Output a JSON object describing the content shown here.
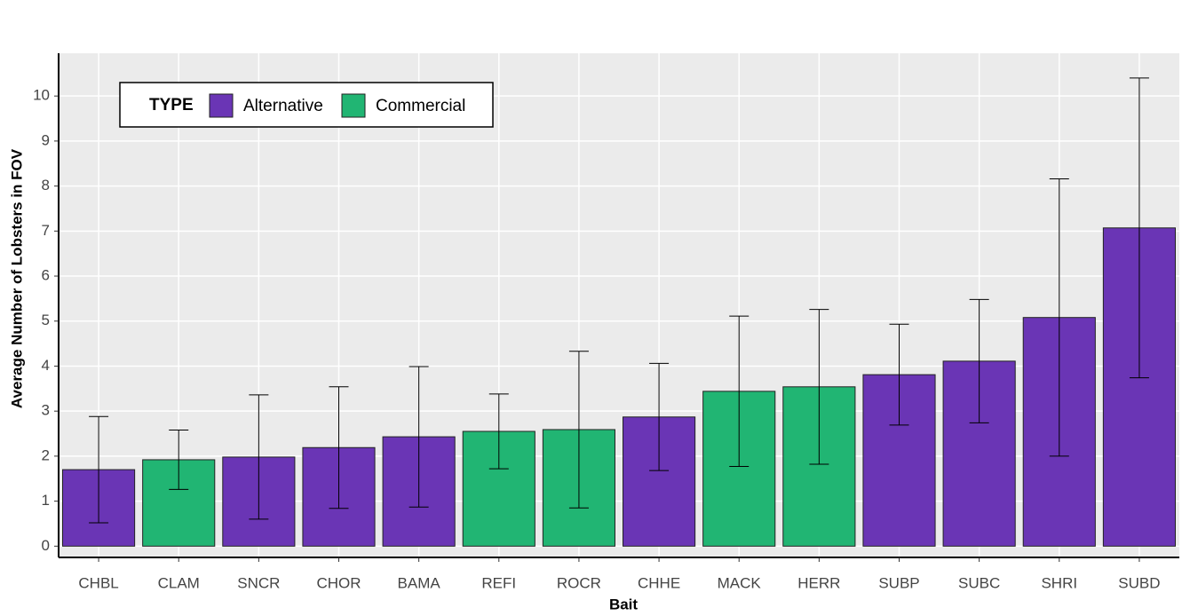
{
  "chart_data": {
    "type": "bar",
    "x_label": "Bait",
    "y_label": "Average Number of Lobsters in FOV",
    "legend_title": "TYPE",
    "categories": [
      "CHBL",
      "CLAM",
      "SNCR",
      "CHOR",
      "BAMA",
      "REFI",
      "ROCR",
      "CHHE",
      "MACK",
      "HERR",
      "SUBP",
      "SUBC",
      "SHRI",
      "SUBD"
    ],
    "series": [
      {
        "name": "Alternative",
        "color": "#6a35b5",
        "values": [
          1.7,
          null,
          1.98,
          2.19,
          2.43,
          null,
          null,
          2.87,
          null,
          null,
          3.81,
          4.11,
          5.08,
          7.07
        ],
        "errors": [
          1.18,
          null,
          1.38,
          1.35,
          1.56,
          null,
          null,
          1.19,
          null,
          null,
          1.12,
          1.37,
          3.08,
          3.33
        ]
      },
      {
        "name": "Commercial",
        "color": "#21b573",
        "values": [
          null,
          1.92,
          null,
          null,
          null,
          2.55,
          2.59,
          null,
          3.44,
          3.54,
          null,
          null,
          null,
          null
        ],
        "errors": [
          null,
          0.66,
          null,
          null,
          null,
          0.83,
          1.74,
          null,
          1.67,
          1.72,
          null,
          null,
          null,
          null
        ]
      }
    ],
    "ylim": [
      -0.25,
      10.95
    ],
    "yticks": [
      0,
      1,
      2,
      3,
      4,
      5,
      6,
      7,
      8,
      9,
      10
    ],
    "grid": true
  }
}
